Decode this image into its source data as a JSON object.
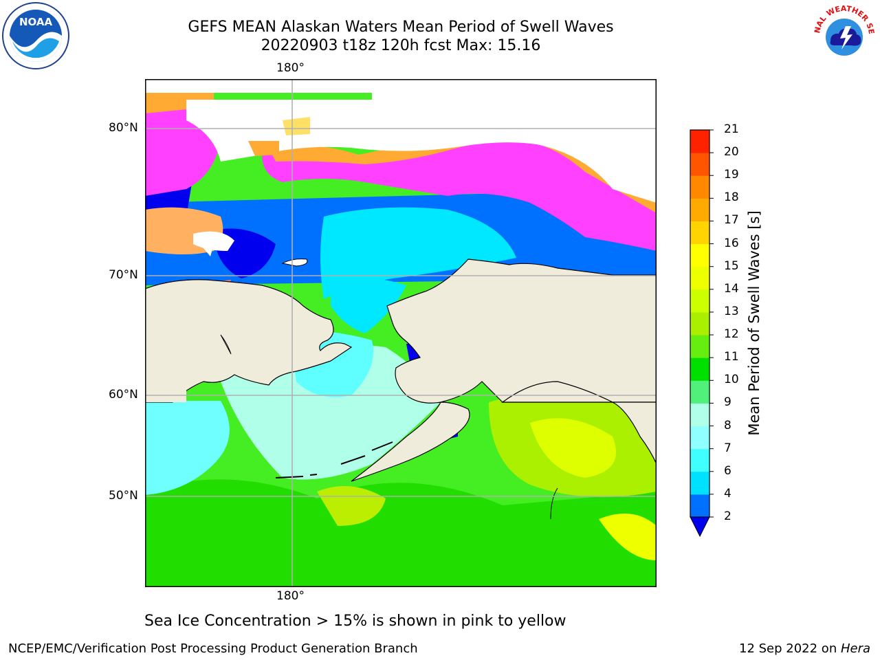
{
  "title": {
    "line1": "GEFS MEAN Alaskan Waters Mean Period of Swell Waves",
    "line2": "20220903 t18z 120h fcst   Max: 15.16"
  },
  "logos": {
    "left": {
      "text": "NOAA",
      "icon": "noaa-logo-icon"
    },
    "right": {
      "text": "NATIONAL WEATHER SERVICE",
      "icon": "nws-logo-icon"
    }
  },
  "map": {
    "lon_labels": [
      "180°",
      "180°"
    ],
    "lat_labels": [
      "80°N",
      "70°N",
      "60°N",
      "50°N"
    ],
    "land_color": "#efecdc",
    "ice_colors": [
      "#ff40ff",
      "#ffaa33",
      "#ffe066"
    ]
  },
  "colorbar": {
    "label": "Mean Period of Swell Waves [s]",
    "ticks": [
      "21",
      "20",
      "19",
      "18",
      "17",
      "16",
      "15",
      "14",
      "13",
      "12",
      "11",
      "10",
      "9",
      "8",
      "7",
      "6",
      "4",
      "2"
    ],
    "levels": [
      2,
      4,
      6,
      7,
      8,
      9,
      10,
      11,
      12,
      13,
      14,
      15,
      16,
      17,
      18,
      19,
      20,
      21
    ],
    "colors": [
      "#0070ff",
      "#00e0ff",
      "#40ffff",
      "#90ffff",
      "#b0ffe8",
      "#50f07a",
      "#00e000",
      "#66ee11",
      "#aaee00",
      "#ccff00",
      "#eeff00",
      "#ffff00",
      "#ffd400",
      "#ffaa00",
      "#ff8800",
      "#ff5500",
      "#ff2200"
    ],
    "under_color": "#0000ee"
  },
  "note": "Sea Ice Concentration > 15% is shown in pink to yellow",
  "footer": {
    "left": "NCEP/EMC/Verification Post Processing Product Generation Branch",
    "date": "12 Sep 2022 on ",
    "machine": "Hera"
  }
}
